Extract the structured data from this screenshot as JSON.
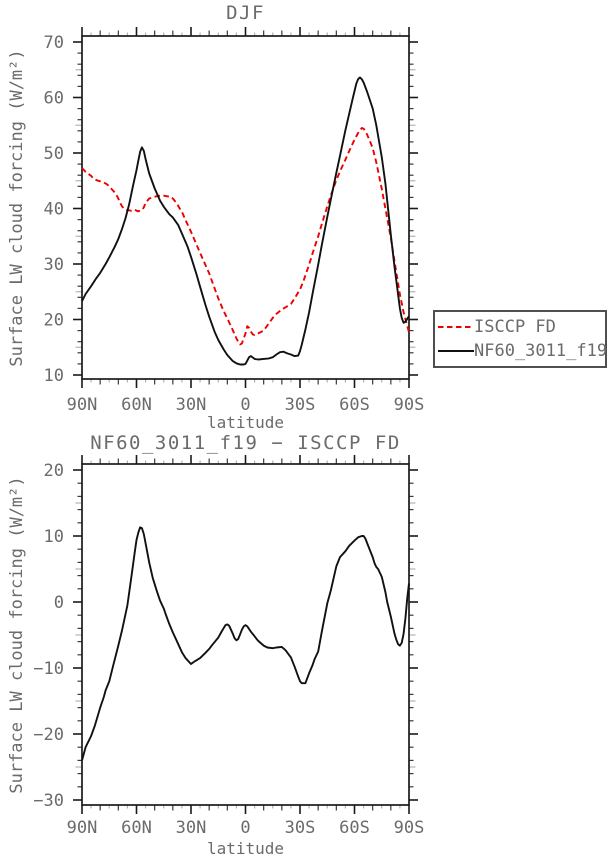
{
  "figure": {
    "top_title": "DJF",
    "bottom_title": "NF60_3011_f19 − ISCCP FD"
  },
  "colors": {
    "axis": "#1a1a1a",
    "text": "#6b6b6b",
    "minor_tick": "#3a3a3a",
    "sub_minor_tick_gray": "#b3b3b3",
    "red_series": "#ee0000",
    "black_series": "#111111"
  },
  "chart_data": [
    {
      "type": "line",
      "title": "DJF",
      "xlabel": "latitude",
      "ylabel": "Surface LW cloud forcing (W/m²)",
      "grid": false,
      "x_axis": {
        "range": [
          90,
          -90
        ],
        "tick_values": [
          90,
          60,
          30,
          0,
          -30,
          -60,
          -90
        ],
        "tick_labels": [
          "90N",
          "60N",
          "30N",
          "0",
          "30S",
          "60S",
          "90S"
        ],
        "minor_step": 10,
        "sub_minor_step": 5
      },
      "y_axis": {
        "range": [
          9,
          71.5
        ],
        "tick_values": [
          10,
          20,
          30,
          40,
          50,
          60,
          70
        ],
        "minor_step": 2
      },
      "legend": {
        "position": "right-outside",
        "entries": [
          {
            "label": "ISCCP FD",
            "color": "#ee0000",
            "dashed": true
          },
          {
            "label": "NF60_3011_f19",
            "color": "#111111",
            "dashed": false
          }
        ]
      },
      "series": [
        {
          "name": "ISCCP FD",
          "color": "#ee0000",
          "dashed": true,
          "x": [
            90,
            88,
            86,
            85,
            84,
            82,
            80,
            78,
            76,
            74,
            72,
            71,
            70,
            69,
            68,
            67,
            66,
            65,
            63,
            61,
            60,
            59,
            58,
            57,
            56,
            55,
            53,
            51,
            49,
            47,
            45,
            43,
            41,
            40,
            38,
            36,
            35,
            33,
            30,
            28,
            25,
            22,
            20,
            18,
            15,
            12,
            10,
            8,
            5,
            4,
            3,
            2,
            1,
            0,
            -1,
            -2,
            -3,
            -4,
            -5,
            -7,
            -10,
            -12,
            -15,
            -17,
            -20,
            -22,
            -25,
            -27,
            -30,
            -32,
            -35,
            -37,
            -40,
            -42,
            -45,
            -47,
            -50,
            -52,
            -55,
            -57,
            -60,
            -62,
            -64,
            -65,
            -67,
            -70,
            -72,
            -75,
            -77,
            -80,
            -82,
            -85,
            -87,
            -90
          ],
          "y": [
            47.3,
            46.6,
            46.1,
            45.9,
            45.5,
            45.1,
            44.9,
            44.7,
            44.3,
            43.6,
            42.9,
            42.4,
            41.8,
            41.0,
            40.4,
            40.0,
            39.8,
            39.7,
            39.6,
            39.8,
            39.6,
            39.5,
            39.6,
            39.7,
            40.2,
            41.0,
            41.8,
            42.0,
            42.2,
            42.3,
            42.3,
            42.2,
            42.1,
            41.8,
            41.0,
            39.9,
            39.4,
            37.9,
            35.8,
            34.3,
            32.0,
            29.8,
            28.3,
            26.5,
            23.8,
            21.5,
            20.2,
            18.8,
            16.6,
            16.0,
            15.5,
            15.7,
            16.6,
            17.5,
            18.8,
            18.5,
            17.8,
            17.3,
            17.2,
            17.5,
            18.0,
            18.9,
            20.3,
            21.0,
            21.8,
            22.2,
            22.8,
            23.8,
            25.4,
            27.0,
            29.9,
            32.0,
            35.0,
            37.2,
            40.4,
            42.4,
            45.1,
            46.7,
            48.8,
            50.3,
            52.4,
            53.6,
            54.5,
            54.4,
            53.3,
            50.9,
            48.3,
            43.5,
            40.0,
            34.7,
            30.5,
            24.5,
            21.3,
            17.7
          ]
        },
        {
          "name": "NF60_3011_f19",
          "color": "#111111",
          "dashed": false,
          "x": [
            90,
            88,
            85,
            82,
            80,
            77,
            75,
            72,
            70,
            68,
            66,
            64,
            62,
            60,
            59,
            58,
            57,
            56,
            55,
            53,
            50,
            47,
            45,
            42,
            40,
            37,
            35,
            32,
            30,
            27,
            25,
            22,
            20,
            17,
            15,
            12,
            10,
            7,
            5,
            3,
            1,
            0,
            -2,
            -3,
            -5,
            -7,
            -10,
            -13,
            -15,
            -17,
            -19,
            -21,
            -23,
            -25,
            -27,
            -29,
            -30,
            -31,
            -33,
            -35,
            -37,
            -40,
            -42,
            -45,
            -47,
            -50,
            -52,
            -55,
            -57,
            -59,
            -61,
            -62,
            -63,
            -64,
            -65,
            -67,
            -70,
            -72,
            -75,
            -77,
            -80,
            -82,
            -85,
            -86,
            -87,
            -88,
            -90
          ],
          "y": [
            23.3,
            24.6,
            26.0,
            27.5,
            28.4,
            30.0,
            31.2,
            33.1,
            34.5,
            36.3,
            38.3,
            40.8,
            44.0,
            46.9,
            48.6,
            50.2,
            51.0,
            50.4,
            48.9,
            46.3,
            43.6,
            41.4,
            40.3,
            39.0,
            38.4,
            37.0,
            35.5,
            33.2,
            31.3,
            28.2,
            25.9,
            22.6,
            20.5,
            17.8,
            16.3,
            14.6,
            13.6,
            12.5,
            12.1,
            11.9,
            11.9,
            12.0,
            13.2,
            13.4,
            12.9,
            12.8,
            12.9,
            13.0,
            13.2,
            13.7,
            14.1,
            14.2,
            13.9,
            13.7,
            13.4,
            13.5,
            14.3,
            15.5,
            18.2,
            21.3,
            24.8,
            29.9,
            33.4,
            38.5,
            41.7,
            46.4,
            49.5,
            54.1,
            57.0,
            59.8,
            62.5,
            63.3,
            63.6,
            63.3,
            62.7,
            61.0,
            58.0,
            55.0,
            49.2,
            44.5,
            35.3,
            29.5,
            22.0,
            20.3,
            19.4,
            19.6,
            20.6
          ]
        }
      ]
    },
    {
      "type": "line",
      "title": "NF60_3011_f19 − ISCCP FD",
      "xlabel": "latitude",
      "ylabel": "Surface LW cloud forcing (W/m²)",
      "grid": false,
      "x_axis": {
        "range": [
          90,
          -90
        ],
        "tick_values": [
          90,
          60,
          30,
          0,
          -30,
          -60,
          -90
        ],
        "tick_labels": [
          "90N",
          "60N",
          "30N",
          "0",
          "30S",
          "60S",
          "90S"
        ],
        "minor_step": 10,
        "sub_minor_step": 5
      },
      "y_axis": {
        "range": [
          -30.8,
          20.9
        ],
        "tick_values": [
          -30,
          -20,
          -10,
          0,
          10,
          20
        ],
        "minor_step": 2
      },
      "series": [
        {
          "name": "NF60_3011_f19 − ISCCP FD",
          "color": "#111111",
          "dashed": false,
          "x": [
            90,
            88,
            85,
            83,
            80,
            78,
            77,
            75,
            73,
            70,
            68,
            65,
            63,
            62,
            61,
            60,
            59,
            58,
            57,
            56,
            55,
            53,
            52,
            51,
            50,
            49,
            48,
            47,
            46,
            45,
            44,
            42,
            40,
            38,
            35,
            33,
            30,
            28,
            25,
            22,
            20,
            18,
            15,
            13,
            11,
            10,
            9,
            7,
            6,
            5,
            4,
            3,
            2,
            1,
            0,
            -1,
            -3,
            -5,
            -7,
            -10,
            -12,
            -15,
            -17,
            -20,
            -22,
            -25,
            -27,
            -29,
            -30,
            -31,
            -33,
            -35,
            -37,
            -38,
            -40,
            -42,
            -45,
            -47,
            -50,
            -52,
            -55,
            -57,
            -60,
            -62,
            -64,
            -65,
            -66,
            -68,
            -70,
            -71,
            -72,
            -73,
            -75,
            -77,
            -78,
            -80,
            -82,
            -83,
            -84,
            -85,
            -86,
            -87,
            -88,
            -89,
            -90
          ],
          "y": [
            -24.0,
            -22.0,
            -20.3,
            -18.8,
            -16.0,
            -14.4,
            -13.4,
            -12.0,
            -9.8,
            -6.6,
            -4.3,
            -0.5,
            3.5,
            5.5,
            7.5,
            9.4,
            10.5,
            11.3,
            11.2,
            10.3,
            8.9,
            6.0,
            4.8,
            3.6,
            2.7,
            1.8,
            1.0,
            0.2,
            -0.4,
            -1.0,
            -1.8,
            -3.3,
            -4.6,
            -5.8,
            -7.6,
            -8.5,
            -9.4,
            -9.0,
            -8.5,
            -7.7,
            -7.1,
            -6.4,
            -5.4,
            -4.4,
            -3.5,
            -3.4,
            -3.6,
            -4.8,
            -5.5,
            -5.8,
            -5.6,
            -4.9,
            -4.2,
            -3.7,
            -3.5,
            -3.7,
            -4.5,
            -5.2,
            -5.9,
            -6.6,
            -6.9,
            -7.0,
            -6.9,
            -6.8,
            -7.3,
            -8.4,
            -9.8,
            -11.3,
            -12.0,
            -12.3,
            -12.3,
            -10.8,
            -9.5,
            -8.7,
            -7.5,
            -4.5,
            -0.2,
            1.8,
            5.4,
            6.8,
            7.7,
            8.5,
            9.3,
            9.8,
            10.0,
            10.0,
            9.6,
            8.2,
            6.8,
            5.9,
            5.3,
            5.0,
            3.8,
            1.5,
            0.0,
            -2.2,
            -4.8,
            -5.7,
            -6.4,
            -6.6,
            -6.2,
            -4.8,
            -2.5,
            0.5,
            2.8
          ]
        }
      ]
    }
  ]
}
